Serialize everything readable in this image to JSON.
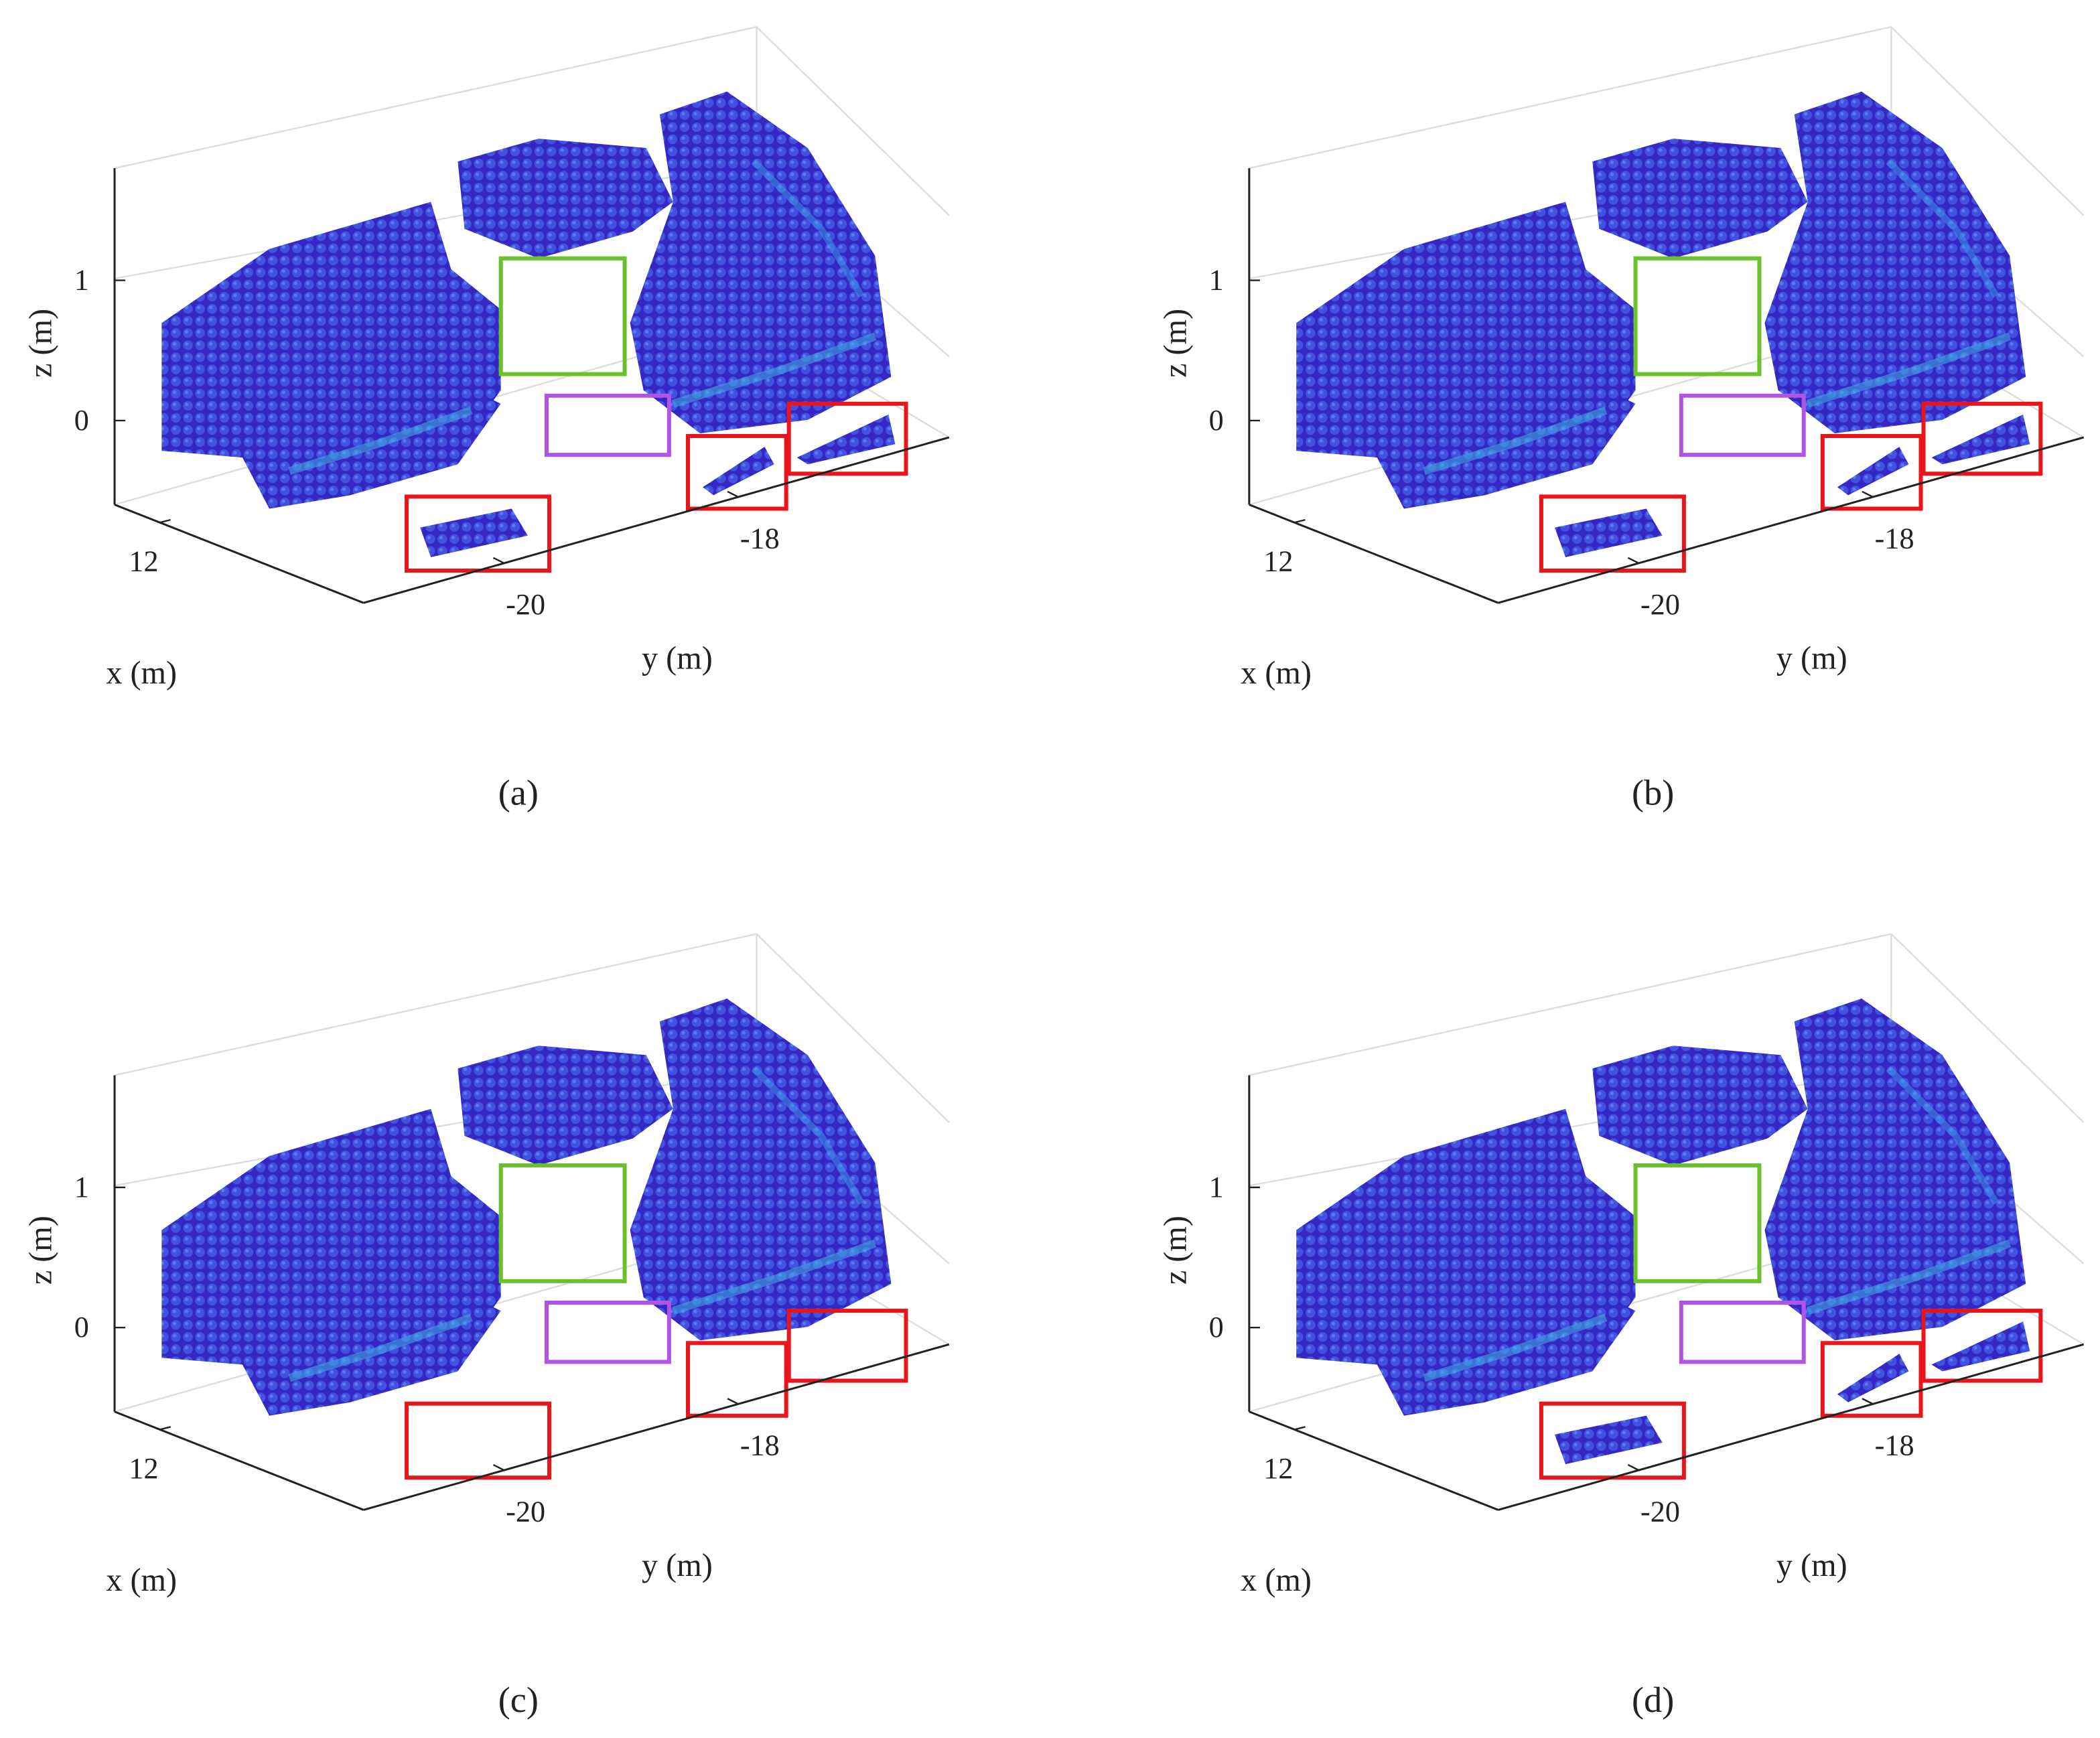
{
  "chart_data": [
    {
      "type": "scatter3d",
      "caption": "(a)",
      "xlabel": "x (m)",
      "ylabel": "y (m)",
      "zlabel": "z (m)",
      "xlim": [
        13.8,
        11.6
      ],
      "xticks": [
        12
      ],
      "ylim": [
        -21.2,
        -16.2
      ],
      "yticks": [
        -20,
        -18
      ],
      "zlim": [
        -0.6,
        1.8
      ],
      "zticks": [
        0,
        1
      ],
      "clusters": true
    },
    {
      "type": "scatter3d",
      "caption": "(b)",
      "xlabel": "x (m)",
      "ylabel": "y (m)",
      "zlabel": "z (m)",
      "xlim": [
        13.8,
        11.6
      ],
      "xticks": [
        12
      ],
      "ylim": [
        -21.2,
        -16.2
      ],
      "yticks": [
        -20,
        -18
      ],
      "zlim": [
        -0.6,
        1.8
      ],
      "zticks": [
        0,
        1
      ],
      "clusters": true
    },
    {
      "type": "scatter3d",
      "caption": "(c)",
      "xlabel": "x (m)",
      "ylabel": "y (m)",
      "zlabel": "z (m)",
      "xlim": [
        13.8,
        11.6
      ],
      "xticks": [
        12
      ],
      "ylim": [
        -21.2,
        -16.2
      ],
      "yticks": [
        -20,
        -18
      ],
      "zlim": [
        -0.6,
        1.8
      ],
      "zticks": [
        0,
        1
      ],
      "clusters": false
    },
    {
      "type": "scatter3d",
      "caption": "(d)",
      "xlabel": "x (m)",
      "ylabel": "y (m)",
      "zlabel": "z (m)",
      "xlim": [
        13.8,
        11.6
      ],
      "xticks": [
        12
      ],
      "ylim": [
        -21.2,
        -16.2
      ],
      "yticks": [
        -20,
        -18
      ],
      "zlim": [
        -0.6,
        1.8
      ],
      "zticks": [
        0,
        1
      ],
      "clusters": true
    }
  ]
}
